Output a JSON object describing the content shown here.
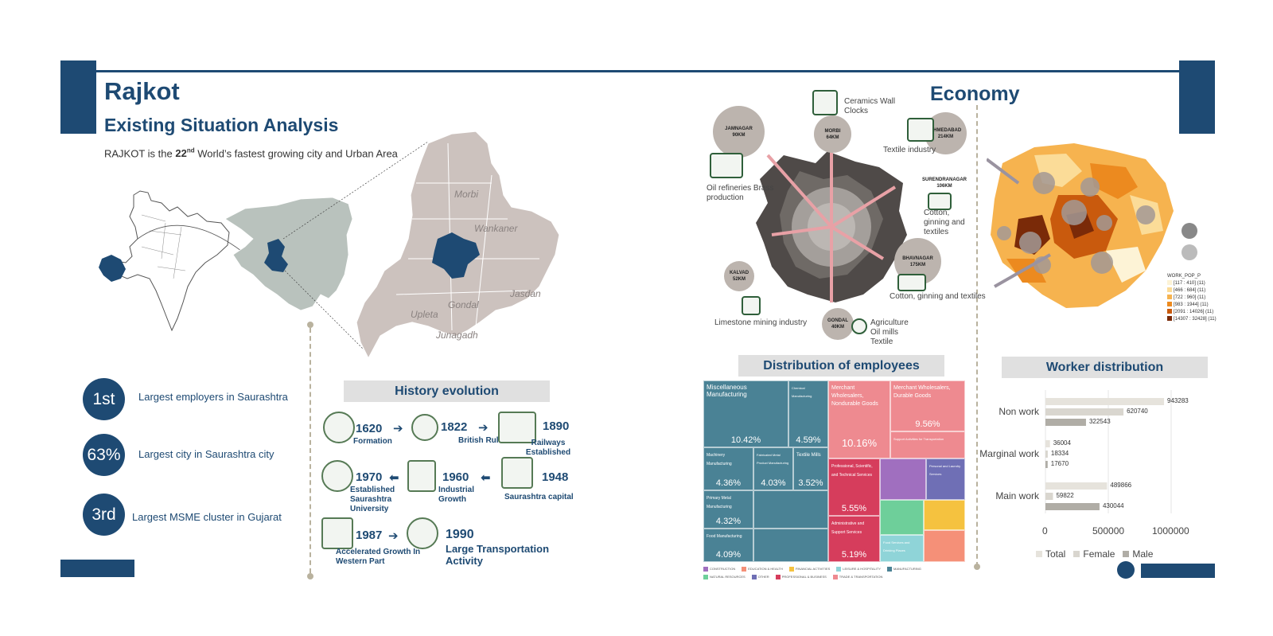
{
  "header": {
    "title": "Rajkot",
    "subtitle": "Existing Situation Analysis",
    "tagline_prefix": "RAJKOT is the ",
    "tagline_rank": "22",
    "tagline_sup": "nd",
    "tagline_suffix": " World’s fastest growing city and Urban Area",
    "economy_title": "Economy"
  },
  "map_labels": [
    "Morbi",
    "Wankaner",
    "Upleta",
    "Gondal",
    "Jasdan",
    "Junagadh"
  ],
  "stats": [
    {
      "value": "1st",
      "text": "Largest employers in Saurashtra"
    },
    {
      "value": "63%",
      "text": "Largest city in Saurashtra city"
    },
    {
      "value": "3rd",
      "text": "Largest MSME cluster in Gujarat"
    }
  ],
  "history": {
    "title": "History evolution",
    "events": [
      {
        "year": "1620",
        "label": "Formation"
      },
      {
        "year": "1822",
        "label": "British Rule"
      },
      {
        "year": "1890",
        "label": "Railways Established"
      },
      {
        "year": "1948",
        "label": "Saurashtra capital"
      },
      {
        "year": "1960",
        "label": "Industrial Growth"
      },
      {
        "year": "1970",
        "label": "Established Saurashtra University"
      },
      {
        "year": "1987",
        "label": "Accelerated Growth In Western Part"
      },
      {
        "year": "1990",
        "label": "Large Transportation Activity"
      }
    ]
  },
  "economy": {
    "cities": [
      {
        "name": "JAMNAGAR",
        "dist": "90KM"
      },
      {
        "name": "MORBI",
        "dist": "64KM"
      },
      {
        "name": "AHMEDABAD",
        "dist": "214KM"
      },
      {
        "name": "SURENDRANAGAR",
        "dist": "106KM"
      },
      {
        "name": "BHAVNAGAR",
        "dist": "175KM"
      },
      {
        "name": "KALVAD",
        "dist": "52KM"
      },
      {
        "name": "GONDAL",
        "dist": "40KM"
      }
    ],
    "industries": {
      "ceramics": "Ceramics Wall Clocks",
      "oil": "Oil refineries Brass production",
      "textile": "Textile industry",
      "cotton1": "Cotton, ginning and textiles",
      "cotton2": "Cotton, ginning and textiles",
      "limestone": "Limestone mining industry",
      "agri": "Agriculture Oil mills Textile"
    }
  },
  "choropleth": {
    "legend_title": "WORK_POP_P",
    "legend_items": [
      "[117 : 410] (11)",
      "[466 : 684] (11)",
      "[722 : 960] (11)",
      "[983 : 1944] (11)",
      "[2091 : 14026] (11)",
      "[14307 : 32428] (11)"
    ],
    "legend_colors": [
      "#fdf3d6",
      "#fbdc98",
      "#f6b34f",
      "#ec8a1f",
      "#c95a0d",
      "#7a2a08"
    ]
  },
  "employees": {
    "title": "Distribution of employees",
    "tiles": [
      {
        "label": "Miscellaneous Manufacturing",
        "pct": "10.42%"
      },
      {
        "label": "Chemical Manufacturing",
        "pct": "4.59%"
      },
      {
        "label": "Textile Mills",
        "pct": ""
      },
      {
        "label": "Machinery Manufacturing",
        "pct": "4.36%"
      },
      {
        "label": "Fabricated Metal Product Manufacturing",
        "pct": "4.03%"
      },
      {
        "label": "",
        "pct": "3.52%"
      },
      {
        "label": "Primary Metal Manufacturing",
        "pct": "4.32%"
      },
      {
        "label": "Food Manufacturing",
        "pct": "4.09%"
      },
      {
        "label": "Merchant Wholesalers, Nondurable Goods",
        "pct": "10.16%"
      },
      {
        "label": "Merchant Wholesalers, Durable Goods",
        "pct": "9.56%"
      },
      {
        "label": "Support Activities for Transportation",
        "pct": ""
      },
      {
        "label": "Professional, Scientific, and Technical Services",
        "pct": "5.55%"
      },
      {
        "label": "Administrative and Support Services",
        "pct": "5.19%"
      },
      {
        "label": "Personal and Laundry Services",
        "pct": ""
      },
      {
        "label": "Food Services and Drinking Places",
        "pct": ""
      }
    ],
    "legend": [
      "CONSTRUCTION",
      "EDUCATION & HEALTH",
      "FINANCIAL ACTIVITIES",
      "LEISURE & HOSPITALITY",
      "MANUFACTURING",
      "NATURAL RESOURCES",
      "OTHER",
      "PROFESSIONAL & BUSINESS",
      "TRADE & TRANSPORTATION"
    ]
  },
  "chart_data": {
    "type": "bar",
    "title": "Worker distribution",
    "categories": [
      "Non work",
      "Marginal work",
      "Main work"
    ],
    "series": [
      {
        "name": "Total",
        "values": [
          943283,
          36004,
          489866
        ],
        "color": "#e6e3dc"
      },
      {
        "name": "Female",
        "values": [
          620740,
          18334,
          59822
        ],
        "color": "#d9d6cf"
      },
      {
        "name": "Male",
        "values": [
          322543,
          17670,
          430044
        ],
        "color": "#b0ada6"
      }
    ],
    "orientation": "horizontal",
    "xlim": [
      0,
      1000000
    ],
    "xticks": [
      "0",
      "500000",
      "1000000"
    ],
    "legend_position": "bottom"
  }
}
